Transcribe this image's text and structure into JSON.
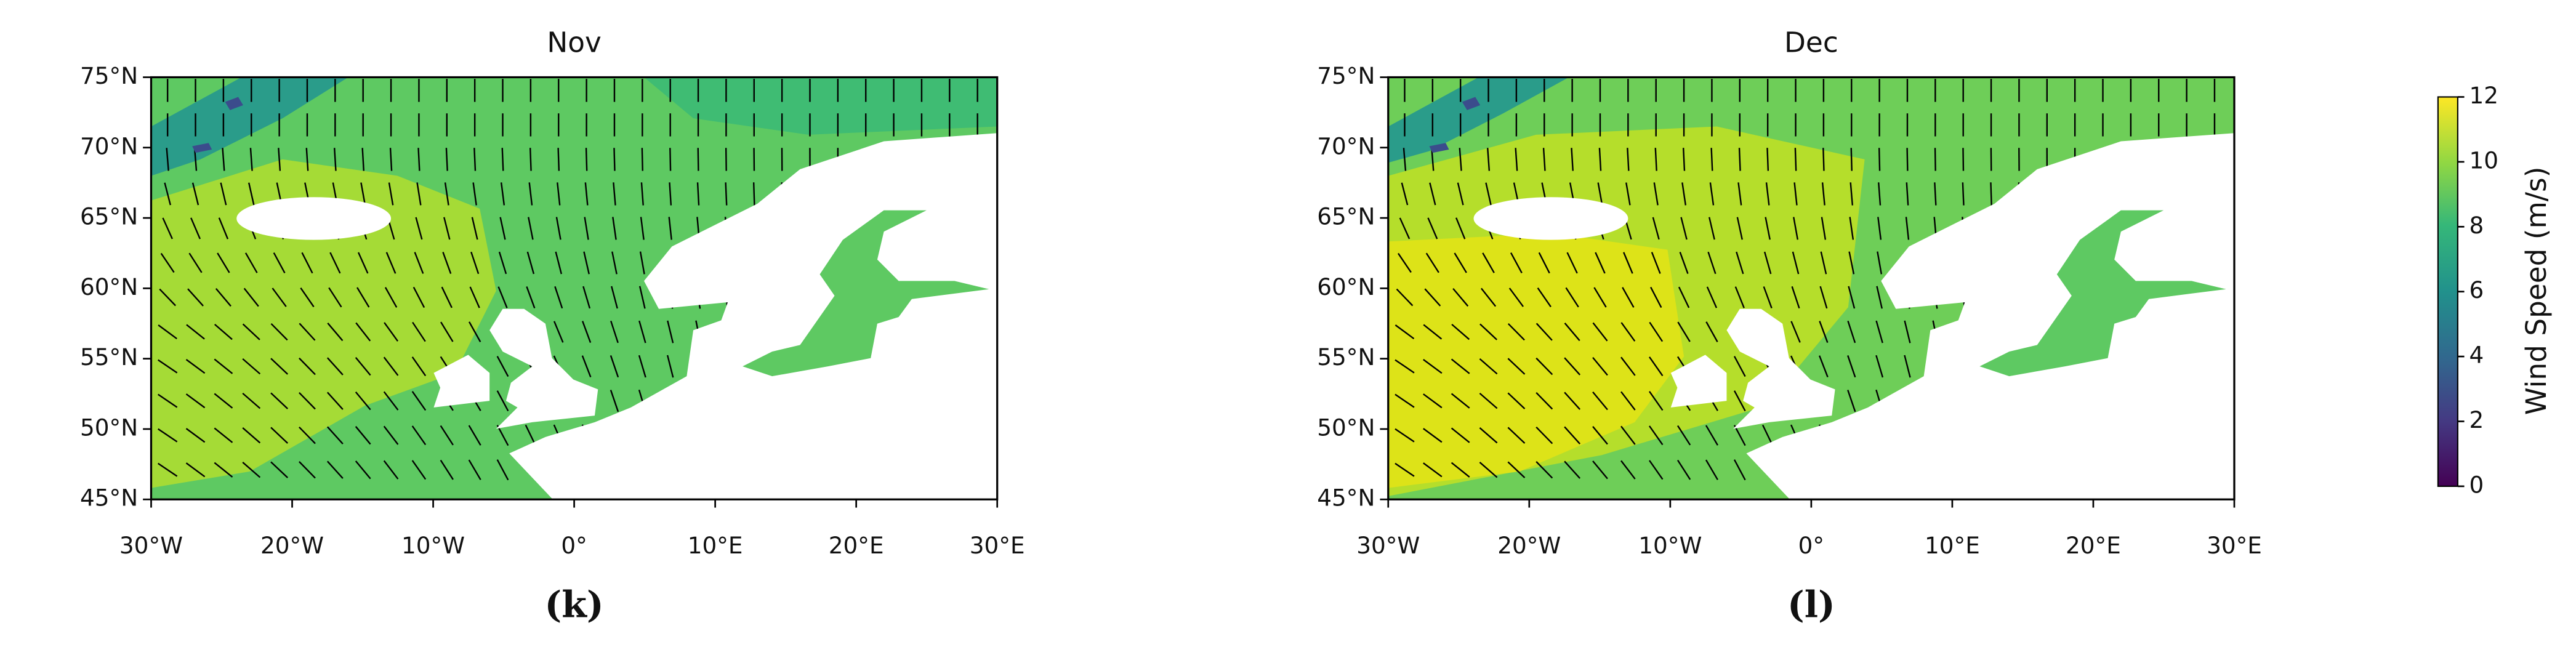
{
  "panels": [
    {
      "title": "Nov",
      "caption": "(k)"
    },
    {
      "title": "Dec",
      "caption": "(l)"
    }
  ],
  "x_ticks": [
    "30°W",
    "20°W",
    "10°W",
    "0°",
    "10°E",
    "20°E",
    "30°E"
  ],
  "y_ticks": [
    "75°N",
    "70°N",
    "65°N",
    "60°N",
    "55°N",
    "50°N",
    "45°N"
  ],
  "colorbar": {
    "label": "Wind Speed (m/s)",
    "ticks": [
      0,
      2,
      4,
      6,
      8,
      10,
      12
    ]
  }
}
